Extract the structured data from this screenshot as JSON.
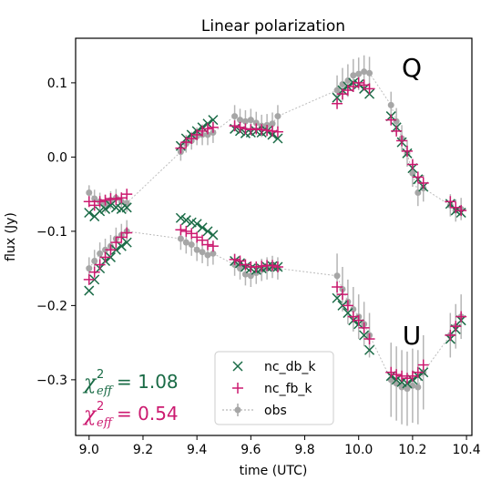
{
  "chart_data": {
    "type": "scatter",
    "title": "Linear polarization",
    "xlabel": "time (UTC)",
    "ylabel": "flux (Jy)",
    "xlim": [
      8.95,
      10.42
    ],
    "ylim": [
      -0.375,
      0.16
    ],
    "xticks": [
      "9.0",
      "9.2",
      "9.4",
      "9.6",
      "9.8",
      "10.0",
      "10.2",
      "10.4"
    ],
    "xtick_values": [
      9.0,
      9.2,
      9.4,
      9.6,
      9.8,
      10.0,
      10.2,
      10.4
    ],
    "yticks": [
      "0.1",
      "0.0",
      "−0.1",
      "−0.2",
      "−0.3"
    ],
    "ytick_values": [
      0.1,
      0.0,
      -0.1,
      -0.2,
      -0.3
    ],
    "panel_labels": [
      "Q",
      "U"
    ],
    "annotations": [
      {
        "name": "chi-db",
        "text": "= 1.08",
        "color": "#1a6b46"
      },
      {
        "name": "chi-fb",
        "text": "= 0.54",
        "color": "#cc1a70"
      }
    ],
    "legend_position": "lower-center",
    "grid": false,
    "series": [
      {
        "name": "nc_db_k",
        "marker": "x",
        "color": "#1a6b46",
        "Q": {
          "x": [
            9.0,
            9.02,
            9.04,
            9.06,
            9.08,
            9.1,
            9.12,
            9.14,
            9.34,
            9.36,
            9.38,
            9.4,
            9.42,
            9.44,
            9.46,
            9.54,
            9.56,
            9.58,
            9.6,
            9.62,
            9.64,
            9.66,
            9.68,
            9.7,
            9.92,
            9.94,
            9.96,
            9.98,
            10.0,
            10.02,
            10.04,
            10.12,
            10.14,
            10.16,
            10.18,
            10.2,
            10.22,
            10.24,
            10.34,
            10.36,
            10.38
          ],
          "y": [
            -0.075,
            -0.08,
            -0.073,
            -0.07,
            -0.065,
            -0.068,
            -0.07,
            -0.068,
            0.015,
            0.025,
            0.03,
            0.035,
            0.04,
            0.045,
            0.05,
            0.038,
            0.035,
            0.032,
            0.033,
            0.035,
            0.033,
            0.035,
            0.03,
            0.025,
            0.08,
            0.09,
            0.095,
            0.1,
            0.098,
            0.092,
            0.085,
            0.055,
            0.04,
            0.02,
            0.005,
            -0.015,
            -0.03,
            -0.04,
            -0.063,
            -0.072,
            -0.075
          ]
        },
        "U": {
          "x": [
            9.0,
            9.02,
            9.04,
            9.06,
            9.08,
            9.1,
            9.12,
            9.14,
            9.34,
            9.36,
            9.38,
            9.4,
            9.42,
            9.44,
            9.46,
            9.54,
            9.56,
            9.58,
            9.6,
            9.62,
            9.64,
            9.66,
            9.68,
            9.7,
            9.92,
            9.94,
            9.96,
            9.98,
            10.0,
            10.02,
            10.04,
            10.12,
            10.14,
            10.16,
            10.18,
            10.2,
            10.22,
            10.24,
            10.34,
            10.36,
            10.38
          ],
          "y": [
            -0.18,
            -0.165,
            -0.15,
            -0.14,
            -0.135,
            -0.125,
            -0.12,
            -0.115,
            -0.082,
            -0.085,
            -0.088,
            -0.09,
            -0.095,
            -0.1,
            -0.105,
            -0.14,
            -0.143,
            -0.148,
            -0.15,
            -0.152,
            -0.15,
            -0.148,
            -0.147,
            -0.148,
            -0.19,
            -0.2,
            -0.21,
            -0.22,
            -0.225,
            -0.24,
            -0.26,
            -0.295,
            -0.3,
            -0.303,
            -0.305,
            -0.3,
            -0.295,
            -0.29,
            -0.245,
            -0.232,
            -0.22
          ]
        }
      },
      {
        "name": "nc_fb_k",
        "marker": "+",
        "color": "#cc1a70",
        "Q": {
          "x": [
            9.0,
            9.02,
            9.04,
            9.06,
            9.08,
            9.1,
            9.12,
            9.14,
            9.34,
            9.36,
            9.38,
            9.4,
            9.42,
            9.44,
            9.46,
            9.54,
            9.56,
            9.58,
            9.6,
            9.62,
            9.64,
            9.66,
            9.68,
            9.7,
            9.92,
            9.94,
            9.96,
            9.98,
            10.0,
            10.02,
            10.04,
            10.12,
            10.14,
            10.16,
            10.18,
            10.2,
            10.22,
            10.24,
            10.34,
            10.36,
            10.38
          ],
          "y": [
            -0.06,
            -0.065,
            -0.06,
            -0.058,
            -0.056,
            -0.057,
            -0.055,
            -0.05,
            0.012,
            0.02,
            0.025,
            0.03,
            0.035,
            0.038,
            0.04,
            0.042,
            0.04,
            0.038,
            0.037,
            0.038,
            0.037,
            0.036,
            0.035,
            0.034,
            0.072,
            0.085,
            0.09,
            0.095,
            0.1,
            0.097,
            0.092,
            0.05,
            0.035,
            0.022,
            0.008,
            -0.01,
            -0.027,
            -0.035,
            -0.06,
            -0.068,
            -0.072
          ]
        },
        "U": {
          "x": [
            9.0,
            9.02,
            9.04,
            9.06,
            9.08,
            9.1,
            9.12,
            9.14,
            9.34,
            9.36,
            9.38,
            9.4,
            9.42,
            9.44,
            9.46,
            9.54,
            9.56,
            9.58,
            9.6,
            9.62,
            9.64,
            9.66,
            9.68,
            9.7,
            9.92,
            9.94,
            9.96,
            9.98,
            10.0,
            10.02,
            10.04,
            10.12,
            10.14,
            10.16,
            10.18,
            10.2,
            10.22,
            10.24,
            10.34,
            10.36,
            10.38
          ],
          "y": [
            -0.165,
            -0.155,
            -0.145,
            -0.135,
            -0.125,
            -0.115,
            -0.108,
            -0.102,
            -0.098,
            -0.1,
            -0.103,
            -0.108,
            -0.112,
            -0.118,
            -0.12,
            -0.138,
            -0.14,
            -0.145,
            -0.148,
            -0.148,
            -0.147,
            -0.146,
            -0.146,
            -0.148,
            -0.175,
            -0.185,
            -0.2,
            -0.215,
            -0.22,
            -0.23,
            -0.245,
            -0.29,
            -0.293,
            -0.295,
            -0.298,
            -0.295,
            -0.29,
            -0.28,
            -0.24,
            -0.228,
            -0.215
          ]
        }
      },
      {
        "name": "obs",
        "marker": "o",
        "color": "#a6a6a6",
        "Q": {
          "x": [
            9.0,
            9.02,
            9.04,
            9.06,
            9.08,
            9.1,
            9.12,
            9.14,
            9.34,
            9.36,
            9.38,
            9.4,
            9.42,
            9.44,
            9.46,
            9.54,
            9.56,
            9.58,
            9.6,
            9.62,
            9.64,
            9.66,
            9.68,
            9.7,
            9.92,
            9.94,
            9.96,
            9.98,
            10.0,
            10.02,
            10.04,
            10.12,
            10.14,
            10.16,
            10.18,
            10.2,
            10.22,
            10.24,
            10.34,
            10.36,
            10.38
          ],
          "y": [
            -0.048,
            -0.056,
            -0.06,
            -0.063,
            -0.058,
            -0.055,
            -0.06,
            -0.062,
            0.007,
            0.018,
            0.022,
            0.028,
            0.03,
            0.03,
            0.033,
            0.055,
            0.05,
            0.048,
            0.05,
            0.046,
            0.042,
            0.043,
            0.045,
            0.055,
            0.09,
            0.098,
            0.103,
            0.11,
            0.112,
            0.115,
            0.113,
            0.07,
            0.048,
            0.025,
            0.005,
            -0.022,
            -0.048,
            -0.042,
            -0.065,
            -0.072,
            -0.07
          ],
          "err": [
            0.01,
            0.012,
            0.012,
            0.012,
            0.012,
            0.012,
            0.012,
            0.012,
            0.012,
            0.012,
            0.012,
            0.012,
            0.014,
            0.014,
            0.014,
            0.015,
            0.015,
            0.015,
            0.015,
            0.015,
            0.015,
            0.015,
            0.015,
            0.015,
            0.02,
            0.022,
            0.022,
            0.022,
            0.022,
            0.022,
            0.022,
            0.018,
            0.018,
            0.018,
            0.018,
            0.018,
            0.018,
            0.018,
            0.015,
            0.015,
            0.015
          ]
        },
        "U": {
          "x": [
            9.0,
            9.02,
            9.04,
            9.06,
            9.08,
            9.1,
            9.12,
            9.14,
            9.34,
            9.36,
            9.38,
            9.4,
            9.42,
            9.44,
            9.46,
            9.54,
            9.56,
            9.58,
            9.6,
            9.62,
            9.64,
            9.66,
            9.68,
            9.7,
            9.92,
            9.94,
            9.96,
            9.98,
            10.0,
            10.02,
            10.04,
            10.12,
            10.14,
            10.16,
            10.18,
            10.2,
            10.22,
            10.24,
            10.34,
            10.36,
            10.38
          ],
          "y": [
            -0.15,
            -0.14,
            -0.13,
            -0.125,
            -0.12,
            -0.11,
            -0.105,
            -0.1,
            -0.11,
            -0.115,
            -0.118,
            -0.125,
            -0.128,
            -0.132,
            -0.13,
            -0.145,
            -0.15,
            -0.158,
            -0.16,
            -0.156,
            -0.152,
            -0.15,
            -0.148,
            -0.15,
            -0.16,
            -0.178,
            -0.195,
            -0.205,
            -0.215,
            -0.225,
            -0.24,
            -0.3,
            -0.305,
            -0.31,
            -0.312,
            -0.308,
            -0.31,
            -0.29,
            -0.24,
            -0.228,
            -0.215
          ],
          "err": [
            0.015,
            0.015,
            0.015,
            0.015,
            0.015,
            0.015,
            0.015,
            0.015,
            0.015,
            0.015,
            0.015,
            0.015,
            0.015,
            0.015,
            0.015,
            0.015,
            0.015,
            0.015,
            0.015,
            0.015,
            0.015,
            0.015,
            0.015,
            0.015,
            0.03,
            0.03,
            0.03,
            0.03,
            0.03,
            0.03,
            0.03,
            0.05,
            0.05,
            0.05,
            0.05,
            0.05,
            0.05,
            0.05,
            0.03,
            0.03,
            0.03
          ]
        }
      }
    ]
  }
}
